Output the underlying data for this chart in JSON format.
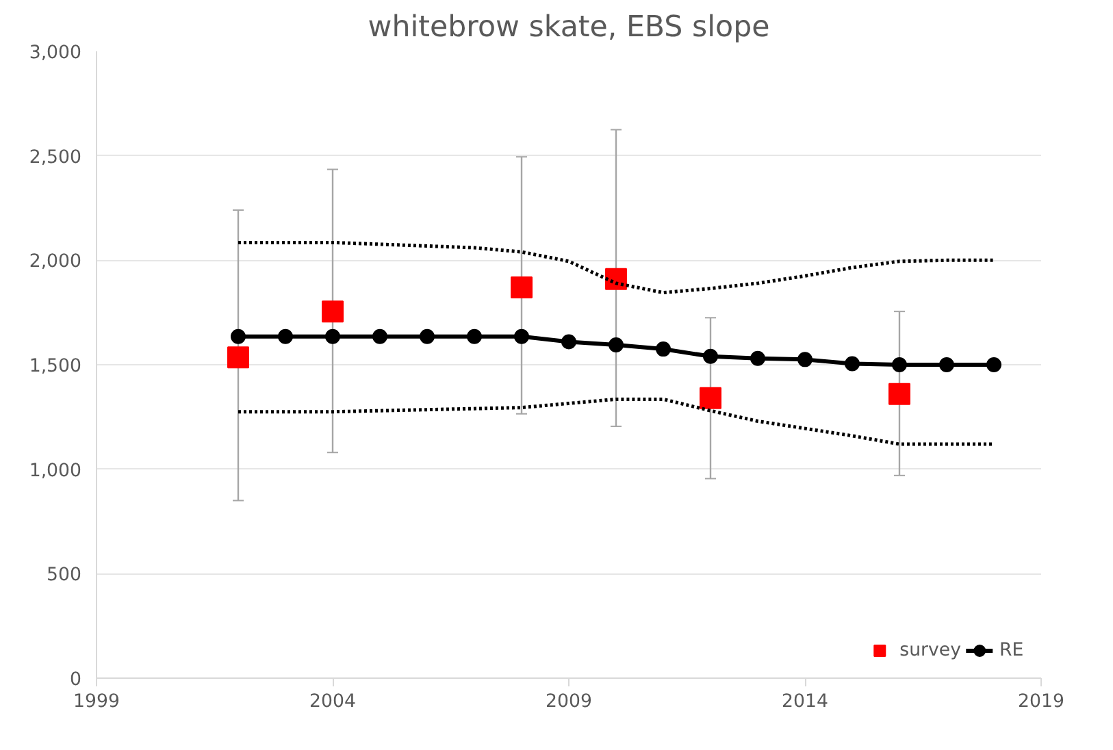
{
  "chart_data": {
    "type": "line",
    "title": "whitebrow skate, EBS slope",
    "xlim": [
      1999,
      2019
    ],
    "xticks": [
      1999,
      2004,
      2009,
      2014,
      2019
    ],
    "ylim": [
      0,
      3000
    ],
    "yticks": [
      {
        "value": 0,
        "label": "0"
      },
      {
        "value": 500,
        "label": "500"
      },
      {
        "value": 1000,
        "label": "1,000"
      },
      {
        "value": 1500,
        "label": "1,500"
      },
      {
        "value": 2000,
        "label": "2,000"
      },
      {
        "value": 2500,
        "label": "2,500"
      },
      {
        "value": 3000,
        "label": "3,000"
      }
    ],
    "grid": "y",
    "legend": "bottom right",
    "series": [
      {
        "name": "survey",
        "type": "scatter",
        "marker": "square",
        "color": "#ff0000",
        "x": [
          2002,
          2004,
          2008,
          2010,
          2012,
          2016
        ],
        "values": [
          1535,
          1755,
          1870,
          1910,
          1340,
          1360
        ],
        "errors": [
          [
            850,
            2240
          ],
          [
            1080,
            2435
          ],
          [
            1265,
            2495
          ],
          [
            1205,
            2625
          ],
          [
            955,
            1725
          ],
          [
            970,
            1755
          ]
        ]
      },
      {
        "name": "RE",
        "marker": "circle",
        "line_style": "solid",
        "color": "#000000",
        "x": [
          2002,
          2003,
          2004,
          2005,
          2006,
          2007,
          2008,
          2009,
          2010,
          2011,
          2012,
          2013,
          2014,
          2015,
          2016,
          2017,
          2018
        ],
        "values": [
          1635,
          1635,
          1635,
          1635,
          1635,
          1635,
          1635,
          1610,
          1595,
          1575,
          1540,
          1530,
          1525,
          1505,
          1500,
          1500,
          1500
        ]
      },
      {
        "marker": "none",
        "line_style": "dotted",
        "color": "#000000",
        "x": [
          2002,
          2004,
          2007,
          2008,
          2009,
          2010,
          2011,
          2012,
          2013,
          2014,
          2015,
          2016,
          2017,
          2018
        ],
        "values": [
          2085,
          2085,
          2060,
          2040,
          1995,
          1890,
          1845,
          1865,
          1890,
          1925,
          1965,
          1995,
          2000,
          2000
        ]
      },
      {
        "marker": "none",
        "line_style": "dotted",
        "color": "#000000",
        "x": [
          2002,
          2004,
          2008,
          2009,
          2010,
          2011,
          2012,
          2013,
          2014,
          2015,
          2016,
          2017,
          2018
        ],
        "values": [
          1275,
          1275,
          1295,
          1315,
          1335,
          1335,
          1280,
          1230,
          1195,
          1160,
          1120,
          1120,
          1120
        ]
      }
    ]
  }
}
